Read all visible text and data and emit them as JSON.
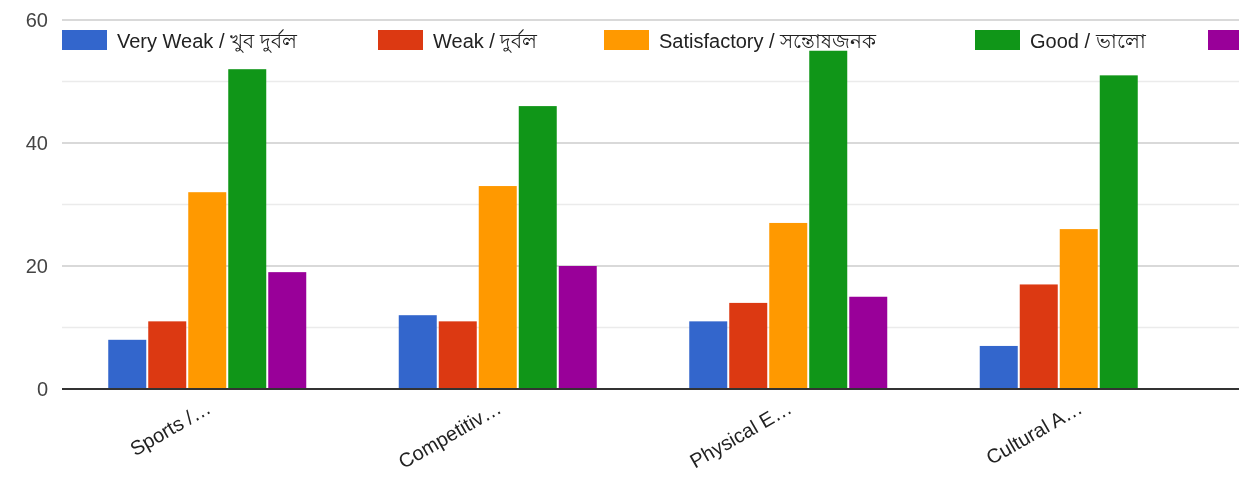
{
  "chart_data": {
    "type": "bar",
    "categories": [
      "Sports /…",
      "Competitiv…",
      "Physical E…",
      "Cultural A…"
    ],
    "series": [
      {
        "name": "Very Weak / খুব দুর্বল",
        "color": "#3366cc",
        "values": [
          8,
          12,
          11,
          7
        ]
      },
      {
        "name": "Weak / দুর্বল",
        "color": "#dc3912",
        "values": [
          11,
          11,
          14,
          17
        ]
      },
      {
        "name": "Satisfactory / সন্তোষজনক",
        "color": "#ff9900",
        "values": [
          32,
          33,
          27,
          26
        ]
      },
      {
        "name": "Good / ভালো",
        "color": "#109618",
        "values": [
          52,
          46,
          55,
          51
        ]
      },
      {
        "color": "#990099",
        "values": [
          19,
          20,
          15,
          null
        ]
      }
    ],
    "ylim": [
      0,
      60
    ],
    "yticks": [
      0,
      {
        "value": 10,
        "label": null
      },
      20,
      {
        "value": 30,
        "label": null
      },
      40,
      {
        "value": 50,
        "label": null
      },
      60
    ],
    "grid": "y",
    "legend": "top"
  }
}
